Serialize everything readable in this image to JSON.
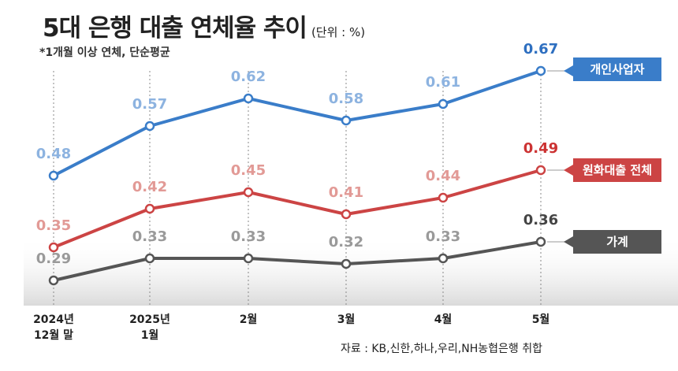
{
  "header": {
    "title": "5대 은행 대출 연체율 추이",
    "unit": "(단위 : %)",
    "subtitle": "*1개월 이상 연체, 단순평균",
    "source": "자료 : KB,신한,하나,우리,NH농협은행 취합"
  },
  "chart_data": {
    "type": "line",
    "categories": [
      [
        "2024년",
        "12월 말"
      ],
      [
        "2025년",
        "1월"
      ],
      [
        "2월"
      ],
      [
        "3월"
      ],
      [
        "4월"
      ],
      [
        "5월"
      ]
    ],
    "ylim": [
      0.2,
      0.75
    ],
    "grid": false,
    "legend": "right",
    "series": [
      {
        "name": "개인사업자",
        "values": [
          0.48,
          0.57,
          0.62,
          0.58,
          0.61,
          0.67
        ],
        "color": "#3a7dc9",
        "label_color": "#8db3e0",
        "last_label_color": "#2e6fc0"
      },
      {
        "name": "원화대출 전체",
        "values": [
          0.35,
          0.42,
          0.45,
          0.41,
          0.44,
          0.49
        ],
        "color": "#cc4444",
        "label_color": "#e29a96",
        "last_label_color": "#cc3333"
      },
      {
        "name": "가계",
        "values": [
          0.29,
          0.33,
          0.33,
          0.32,
          0.33,
          0.36
        ],
        "color": "#555555",
        "label_color": "#9a9a9a",
        "last_label_color": "#444444"
      }
    ],
    "value_labels": [
      [
        "0.48",
        "0.57",
        "0.62",
        "0.58",
        "0.61",
        "0.67"
      ],
      [
        "0.35",
        "0.42",
        "0.45",
        "0.41",
        "0.44",
        "0.49"
      ],
      [
        "0.29",
        "0.33",
        "0.33",
        "0.32",
        "0.33",
        "0.36"
      ]
    ]
  }
}
